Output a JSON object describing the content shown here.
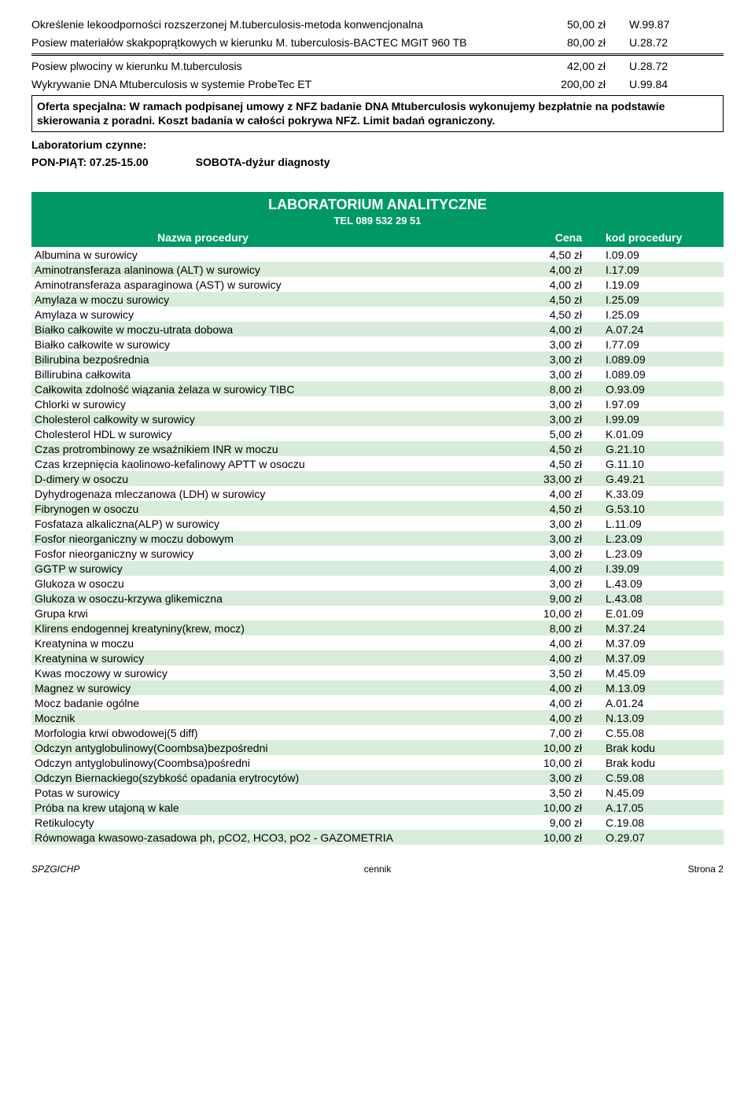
{
  "top": [
    {
      "name": "Określenie lekoodporności rozszerzonej M.tuberculosis-metoda konwencjonalna",
      "price": "50,00 zł",
      "code": "W.99.87"
    },
    {
      "name": "Posiew materiałów skakpoprątkowych w kierunku M. tuberculosis-BACTEC MGIT 960 TB",
      "price": "80,00 zł",
      "code": "U.28.72"
    }
  ],
  "topAfter": [
    {
      "name": "Posiew plwociny w kierunku M.tuberculosis",
      "price": "42,00 zł",
      "code": "U.28.72"
    },
    {
      "name": "Wykrywanie DNA Mtuberculosis w systemie ProbeTec ET",
      "price": "200,00 zł",
      "code": "U.99.84"
    }
  ],
  "offer": "Oferta specjalna: W ramach podpisanej umowy z NFZ badanie DNA Mtuberculosis wykonujemy bezpłatnie na podstawie skierowania z poradni. Koszt badania w całości pokrywa NFZ. Limit badań ograniczony.",
  "labOpen": "Laboratorium czynne:",
  "labHours1": "PON-PIĄT: 07.25-15.00",
  "labHours2": "SOBOTA-dyżur diagnosty",
  "greenTitle": "LABORATORIUM ANALITYCZNE",
  "greenTel": "TEL 089 532 29 51",
  "colName": "Nazwa procedury",
  "colPrice": "Cena",
  "colCode": "kod procedury",
  "rows": [
    {
      "name": "Albumina w surowicy",
      "price": "4,50 zł",
      "code": "I.09.09"
    },
    {
      "name": "Aminotransferaza alaninowa (ALT) w surowicy",
      "price": "4,00 zł",
      "code": "I.17.09"
    },
    {
      "name": "Aminotransferaza asparaginowa (AST) w surowicy",
      "price": "4,00 zł",
      "code": "I.19.09"
    },
    {
      "name": "Amylaza w moczu surowicy",
      "price": "4,50 zł",
      "code": "I.25.09"
    },
    {
      "name": "Amylaza w surowicy",
      "price": "4,50 zł",
      "code": "I.25.09"
    },
    {
      "name": "Białko całkowite w moczu-utrata dobowa",
      "price": "4,00 zł",
      "code": "A.07.24"
    },
    {
      "name": "Białko całkowite w surowicy",
      "price": "3,00 zł",
      "code": "I.77.09"
    },
    {
      "name": "Bilirubina bezpośrednia",
      "price": "3,00 zł",
      "code": "I.089.09"
    },
    {
      "name": "Billirubina całkowita",
      "price": "3,00 zł",
      "code": "I.089.09"
    },
    {
      "name": "Całkowita zdolność wiązania żelaza w surowicy TIBC",
      "price": "8,00 zł",
      "code": "O.93.09"
    },
    {
      "name": "Chlorki w surowicy",
      "price": "3,00 zł",
      "code": "I.97.09"
    },
    {
      "name": "Cholesterol całkowity w surowicy",
      "price": "3,00 zł",
      "code": "I.99.09"
    },
    {
      "name": "Cholesterol HDL w surowicy",
      "price": "5,00 zł",
      "code": "K.01.09"
    },
    {
      "name": "Czas protrombinowy ze wsaźnikiem INR w moczu",
      "price": "4,50 zł",
      "code": "G.21.10"
    },
    {
      "name": "Czas krzepnięcia kaolinowo-kefalinowy APTT w osoczu",
      "price": "4,50 zł",
      "code": "G.11.10"
    },
    {
      "name": "D-dimery w osoczu",
      "price": "33,00 zł",
      "code": "G.49.21"
    },
    {
      "name": "Dyhydrogenaza mleczanowa (LDH) w surowicy",
      "price": "4,00 zł",
      "code": "K.33.09"
    },
    {
      "name": "Fibrynogen w osoczu",
      "price": "4,50 zł",
      "code": "G.53.10"
    },
    {
      "name": "Fosfataza alkaliczna(ALP) w surowicy",
      "price": "3,00 zł",
      "code": "L.11.09"
    },
    {
      "name": "Fosfor nieorganiczny w moczu dobowym",
      "price": "3,00 zł",
      "code": "L.23.09"
    },
    {
      "name": "Fosfor nieorganiczny w surowicy",
      "price": "3,00 zł",
      "code": "L.23.09"
    },
    {
      "name": "GGTP w surowicy",
      "price": "4,00 zł",
      "code": "I.39.09"
    },
    {
      "name": "Glukoza w osoczu",
      "price": "3,00 zł",
      "code": "L.43.09"
    },
    {
      "name": "Glukoza w osoczu-krzywa glikemiczna",
      "price": "9,00 zł",
      "code": "L.43.08"
    },
    {
      "name": "Grupa krwi",
      "price": "10,00 zł",
      "code": "E.01.09"
    },
    {
      "name": "Klirens endogennej kreatyniny(krew, mocz)",
      "price": "8,00 zł",
      "code": "M.37.24"
    },
    {
      "name": "Kreatynina w moczu",
      "price": "4,00 zł",
      "code": "M.37.09"
    },
    {
      "name": "Kreatynina w surowicy",
      "price": "4,00 zł",
      "code": "M.37.09"
    },
    {
      "name": "Kwas moczowy w surowicy",
      "price": "3,50 zł",
      "code": "M.45.09"
    },
    {
      "name": "Magnez w surowicy",
      "price": "4,00 zł",
      "code": "M.13.09"
    },
    {
      "name": "Mocz badanie ogólne",
      "price": "4,00 zł",
      "code": "A.01.24"
    },
    {
      "name": "Mocznik",
      "price": "4,00 zł",
      "code": "N.13.09"
    },
    {
      "name": "Morfologia krwi obwodowej(5 diff)",
      "price": "7,00 zł",
      "code": "C.55.08"
    },
    {
      "name": "Odczyn antyglobulinowy(Coombsa)bezpośredni",
      "price": "10,00 zł",
      "code": "Brak kodu"
    },
    {
      "name": "Odczyn antyglobulinowy(Coombsa)pośredni",
      "price": "10,00 zł",
      "code": "Brak kodu"
    },
    {
      "name": "Odczyn Biernackiego(szybkość opadania erytrocytów)",
      "price": "3,00 zł",
      "code": "C.59.08"
    },
    {
      "name": "Potas w surowicy",
      "price": "3,50 zł",
      "code": "N.45.09"
    },
    {
      "name": "Próba na krew utajoną w kale",
      "price": "10,00 zł",
      "code": "A.17.05"
    },
    {
      "name": "Retikulocyty",
      "price": "9,00 zł",
      "code": "C.19.08"
    },
    {
      "name": "Równowaga kwasowo-zasadowa ph, pCO2, HCO3, pO2 - GAZOMETRIA",
      "price": "10,00 zł",
      "code": "O.29.07"
    }
  ],
  "footer": {
    "left": "SPZGICHP",
    "center": "cennik",
    "right": "Strona 2"
  }
}
